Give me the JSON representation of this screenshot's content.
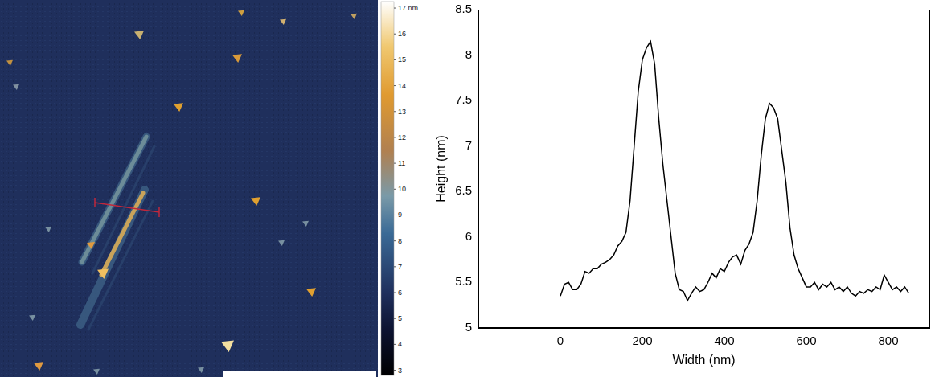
{
  "chart_data": [
    {
      "type": "image",
      "colorbar": {
        "range": [
          2.8,
          17.25
        ],
        "ticks": [
          {
            "value": 17,
            "label": "17 nm"
          },
          16,
          15,
          14,
          13,
          12,
          11,
          10,
          9,
          8,
          7,
          6,
          5,
          4,
          3
        ]
      }
    },
    {
      "type": "line",
      "x_label": "Width (nm)",
      "y_label": "Height (nm)",
      "color": "#000000",
      "grid": false,
      "xlim": [
        -200,
        900
      ],
      "xticks": [
        0,
        200,
        400,
        600,
        800
      ],
      "ylim": [
        5,
        8.5
      ],
      "yticks": [
        5,
        5.5,
        6,
        6.5,
        7,
        7.5,
        8,
        8.5
      ],
      "x": [
        0,
        10,
        20,
        30,
        40,
        50,
        60,
        70,
        80,
        90,
        100,
        110,
        120,
        130,
        140,
        150,
        160,
        170,
        180,
        190,
        200,
        210,
        220,
        230,
        240,
        250,
        260,
        270,
        280,
        290,
        300,
        310,
        320,
        330,
        340,
        350,
        360,
        370,
        380,
        390,
        400,
        410,
        420,
        430,
        440,
        450,
        460,
        470,
        480,
        490,
        500,
        510,
        520,
        530,
        540,
        550,
        560,
        570,
        580,
        590,
        600,
        610,
        620,
        630,
        640,
        650,
        660,
        670,
        680,
        690,
        700,
        710,
        720,
        730,
        740,
        750,
        760,
        770,
        780,
        790,
        800,
        810,
        820,
        830,
        840,
        850
      ],
      "values": [
        5.35,
        5.48,
        5.5,
        5.42,
        5.42,
        5.48,
        5.62,
        5.6,
        5.65,
        5.65,
        5.7,
        5.72,
        5.75,
        5.8,
        5.9,
        5.95,
        6.05,
        6.4,
        7.0,
        7.6,
        7.95,
        8.08,
        8.15,
        7.9,
        7.3,
        6.8,
        6.4,
        6.0,
        5.6,
        5.42,
        5.4,
        5.3,
        5.38,
        5.45,
        5.4,
        5.42,
        5.5,
        5.6,
        5.55,
        5.65,
        5.62,
        5.72,
        5.78,
        5.8,
        5.7,
        5.85,
        5.92,
        6.05,
        6.4,
        6.9,
        7.3,
        7.47,
        7.42,
        7.3,
        6.95,
        6.6,
        6.1,
        5.8,
        5.65,
        5.55,
        5.45,
        5.45,
        5.5,
        5.42,
        5.48,
        5.45,
        5.5,
        5.42,
        5.45,
        5.4,
        5.45,
        5.38,
        5.35,
        5.4,
        5.38,
        5.42,
        5.4,
        5.45,
        5.42,
        5.58,
        5.5,
        5.42,
        5.45,
        5.4,
        5.45,
        5.38
      ]
    }
  ]
}
